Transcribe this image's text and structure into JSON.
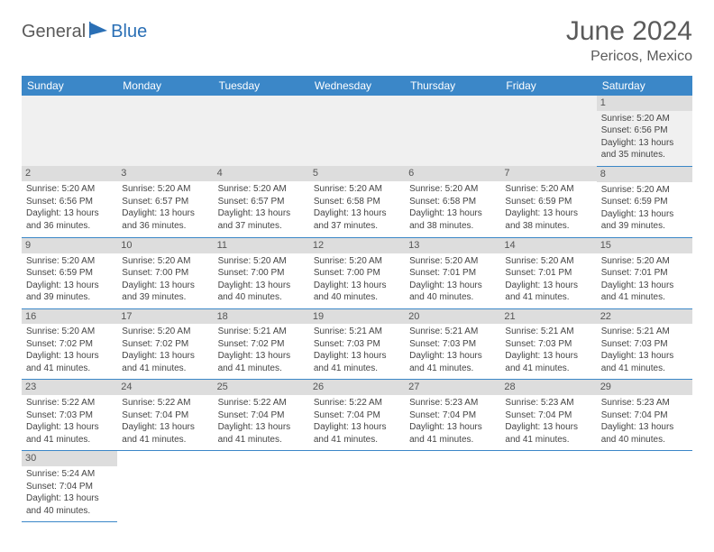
{
  "brand": {
    "part1": "General",
    "part2": "Blue"
  },
  "title": "June 2024",
  "subtitle": "Pericos, Mexico",
  "colors": {
    "header_bg": "#3b87c8",
    "header_fg": "#ffffff",
    "daynum_bg": "#dddddd",
    "rule": "#3b87c8",
    "brand_blue": "#2a6fb5",
    "text_gray": "#5a5a5a"
  },
  "weekdays": [
    "Sunday",
    "Monday",
    "Tuesday",
    "Wednesday",
    "Thursday",
    "Friday",
    "Saturday"
  ],
  "weeks": [
    [
      null,
      null,
      null,
      null,
      null,
      null,
      {
        "n": "1",
        "sr": "Sunrise: 5:20 AM",
        "ss": "Sunset: 6:56 PM",
        "d1": "Daylight: 13 hours",
        "d2": "and 35 minutes."
      }
    ],
    [
      {
        "n": "2",
        "sr": "Sunrise: 5:20 AM",
        "ss": "Sunset: 6:56 PM",
        "d1": "Daylight: 13 hours",
        "d2": "and 36 minutes."
      },
      {
        "n": "3",
        "sr": "Sunrise: 5:20 AM",
        "ss": "Sunset: 6:57 PM",
        "d1": "Daylight: 13 hours",
        "d2": "and 36 minutes."
      },
      {
        "n": "4",
        "sr": "Sunrise: 5:20 AM",
        "ss": "Sunset: 6:57 PM",
        "d1": "Daylight: 13 hours",
        "d2": "and 37 minutes."
      },
      {
        "n": "5",
        "sr": "Sunrise: 5:20 AM",
        "ss": "Sunset: 6:58 PM",
        "d1": "Daylight: 13 hours",
        "d2": "and 37 minutes."
      },
      {
        "n": "6",
        "sr": "Sunrise: 5:20 AM",
        "ss": "Sunset: 6:58 PM",
        "d1": "Daylight: 13 hours",
        "d2": "and 38 minutes."
      },
      {
        "n": "7",
        "sr": "Sunrise: 5:20 AM",
        "ss": "Sunset: 6:59 PM",
        "d1": "Daylight: 13 hours",
        "d2": "and 38 minutes."
      },
      {
        "n": "8",
        "sr": "Sunrise: 5:20 AM",
        "ss": "Sunset: 6:59 PM",
        "d1": "Daylight: 13 hours",
        "d2": "and 39 minutes."
      }
    ],
    [
      {
        "n": "9",
        "sr": "Sunrise: 5:20 AM",
        "ss": "Sunset: 6:59 PM",
        "d1": "Daylight: 13 hours",
        "d2": "and 39 minutes."
      },
      {
        "n": "10",
        "sr": "Sunrise: 5:20 AM",
        "ss": "Sunset: 7:00 PM",
        "d1": "Daylight: 13 hours",
        "d2": "and 39 minutes."
      },
      {
        "n": "11",
        "sr": "Sunrise: 5:20 AM",
        "ss": "Sunset: 7:00 PM",
        "d1": "Daylight: 13 hours",
        "d2": "and 40 minutes."
      },
      {
        "n": "12",
        "sr": "Sunrise: 5:20 AM",
        "ss": "Sunset: 7:00 PM",
        "d1": "Daylight: 13 hours",
        "d2": "and 40 minutes."
      },
      {
        "n": "13",
        "sr": "Sunrise: 5:20 AM",
        "ss": "Sunset: 7:01 PM",
        "d1": "Daylight: 13 hours",
        "d2": "and 40 minutes."
      },
      {
        "n": "14",
        "sr": "Sunrise: 5:20 AM",
        "ss": "Sunset: 7:01 PM",
        "d1": "Daylight: 13 hours",
        "d2": "and 41 minutes."
      },
      {
        "n": "15",
        "sr": "Sunrise: 5:20 AM",
        "ss": "Sunset: 7:01 PM",
        "d1": "Daylight: 13 hours",
        "d2": "and 41 minutes."
      }
    ],
    [
      {
        "n": "16",
        "sr": "Sunrise: 5:20 AM",
        "ss": "Sunset: 7:02 PM",
        "d1": "Daylight: 13 hours",
        "d2": "and 41 minutes."
      },
      {
        "n": "17",
        "sr": "Sunrise: 5:20 AM",
        "ss": "Sunset: 7:02 PM",
        "d1": "Daylight: 13 hours",
        "d2": "and 41 minutes."
      },
      {
        "n": "18",
        "sr": "Sunrise: 5:21 AM",
        "ss": "Sunset: 7:02 PM",
        "d1": "Daylight: 13 hours",
        "d2": "and 41 minutes."
      },
      {
        "n": "19",
        "sr": "Sunrise: 5:21 AM",
        "ss": "Sunset: 7:03 PM",
        "d1": "Daylight: 13 hours",
        "d2": "and 41 minutes."
      },
      {
        "n": "20",
        "sr": "Sunrise: 5:21 AM",
        "ss": "Sunset: 7:03 PM",
        "d1": "Daylight: 13 hours",
        "d2": "and 41 minutes."
      },
      {
        "n": "21",
        "sr": "Sunrise: 5:21 AM",
        "ss": "Sunset: 7:03 PM",
        "d1": "Daylight: 13 hours",
        "d2": "and 41 minutes."
      },
      {
        "n": "22",
        "sr": "Sunrise: 5:21 AM",
        "ss": "Sunset: 7:03 PM",
        "d1": "Daylight: 13 hours",
        "d2": "and 41 minutes."
      }
    ],
    [
      {
        "n": "23",
        "sr": "Sunrise: 5:22 AM",
        "ss": "Sunset: 7:03 PM",
        "d1": "Daylight: 13 hours",
        "d2": "and 41 minutes."
      },
      {
        "n": "24",
        "sr": "Sunrise: 5:22 AM",
        "ss": "Sunset: 7:04 PM",
        "d1": "Daylight: 13 hours",
        "d2": "and 41 minutes."
      },
      {
        "n": "25",
        "sr": "Sunrise: 5:22 AM",
        "ss": "Sunset: 7:04 PM",
        "d1": "Daylight: 13 hours",
        "d2": "and 41 minutes."
      },
      {
        "n": "26",
        "sr": "Sunrise: 5:22 AM",
        "ss": "Sunset: 7:04 PM",
        "d1": "Daylight: 13 hours",
        "d2": "and 41 minutes."
      },
      {
        "n": "27",
        "sr": "Sunrise: 5:23 AM",
        "ss": "Sunset: 7:04 PM",
        "d1": "Daylight: 13 hours",
        "d2": "and 41 minutes."
      },
      {
        "n": "28",
        "sr": "Sunrise: 5:23 AM",
        "ss": "Sunset: 7:04 PM",
        "d1": "Daylight: 13 hours",
        "d2": "and 41 minutes."
      },
      {
        "n": "29",
        "sr": "Sunrise: 5:23 AM",
        "ss": "Sunset: 7:04 PM",
        "d1": "Daylight: 13 hours",
        "d2": "and 40 minutes."
      }
    ],
    [
      {
        "n": "30",
        "sr": "Sunrise: 5:24 AM",
        "ss": "Sunset: 7:04 PM",
        "d1": "Daylight: 13 hours",
        "d2": "and 40 minutes."
      },
      null,
      null,
      null,
      null,
      null,
      null
    ]
  ]
}
